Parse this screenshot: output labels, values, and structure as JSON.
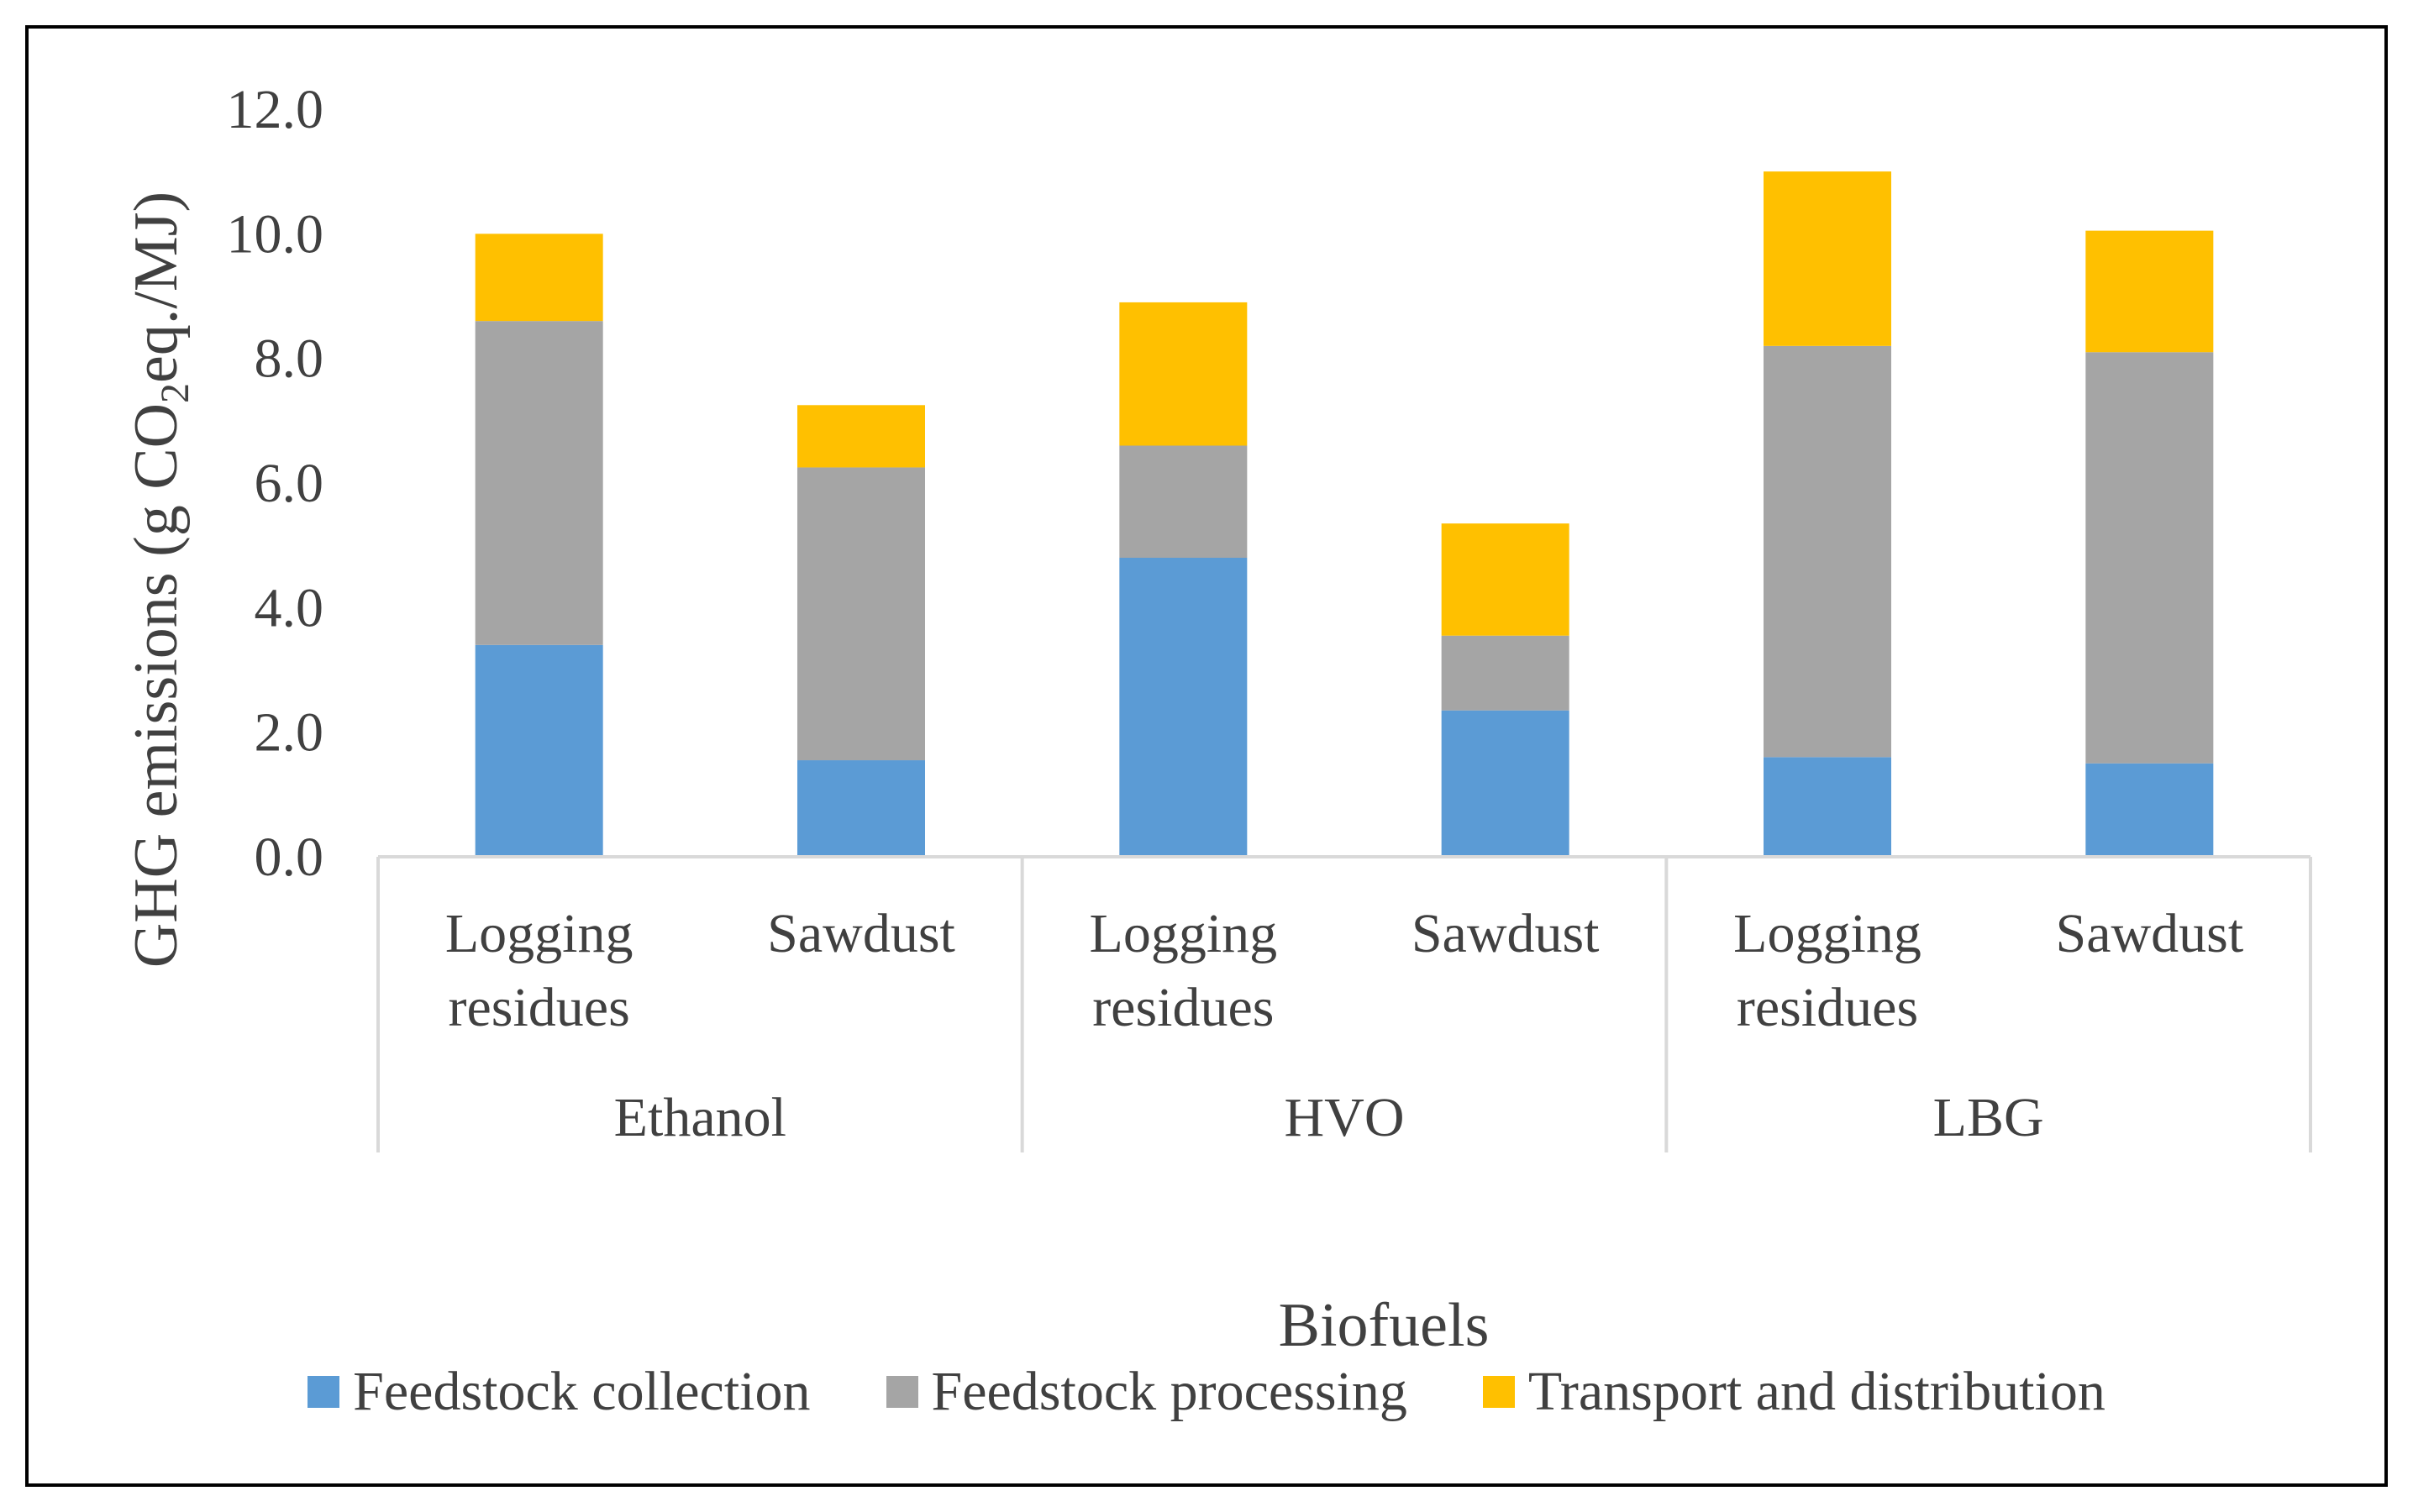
{
  "chart_data": {
    "type": "bar",
    "stacked": true,
    "title": "",
    "xlabel": "Biofuels",
    "ylabel_parts": [
      "GHG emissions (g CO",
      "2",
      "eq./MJ)"
    ],
    "ylim": [
      0,
      12
    ],
    "yticks": [
      "0.0",
      "2.0",
      "4.0",
      "6.0",
      "8.0",
      "10.0",
      "12.0"
    ],
    "groups": [
      "Ethanol",
      "HVO",
      "LBG"
    ],
    "categories": [
      {
        "lines": [
          "Logging",
          "residues"
        ],
        "group": "Ethanol"
      },
      {
        "lines": [
          "Sawdust"
        ],
        "group": "Ethanol"
      },
      {
        "lines": [
          "Logging",
          "residues"
        ],
        "group": "HVO"
      },
      {
        "lines": [
          "Sawdust"
        ],
        "group": "HVO"
      },
      {
        "lines": [
          "Logging",
          "residues"
        ],
        "group": "LBG"
      },
      {
        "lines": [
          "Sawdust"
        ],
        "group": "LBG"
      }
    ],
    "series": [
      {
        "name": "Feedstock collection",
        "color": "#5B9BD5",
        "values": [
          3.4,
          1.55,
          4.8,
          2.35,
          1.6,
          1.5
        ]
      },
      {
        "name": "Feedstock processing",
        "color": "#A5A5A5",
        "values": [
          5.2,
          4.7,
          1.8,
          1.2,
          6.6,
          6.6
        ]
      },
      {
        "name": "Transport and distribution",
        "color": "#FFC000",
        "values": [
          1.4,
          1.0,
          2.3,
          1.8,
          2.8,
          1.95
        ]
      }
    ],
    "legend_position": "bottom"
  }
}
